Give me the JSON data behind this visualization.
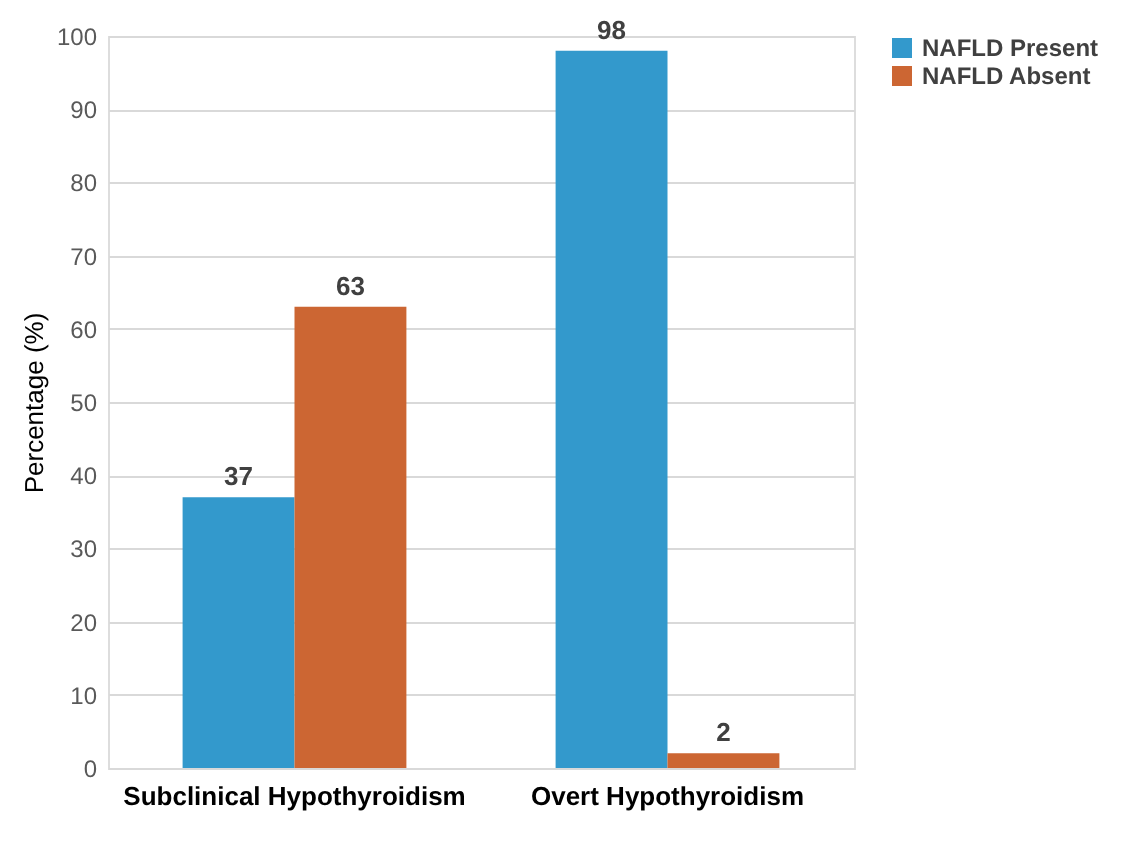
{
  "chart_data": {
    "type": "bar",
    "ylabel": "Percentage (%)",
    "categories": [
      "Subclinical Hypothyroidism",
      "Overt Hypothyroidism"
    ],
    "series": [
      {
        "name": "NAFLD Present",
        "color": "#3399cc",
        "values": [
          37,
          98
        ]
      },
      {
        "name": "NAFLD Absent",
        "color": "#cc6633",
        "values": [
          63,
          2
        ]
      }
    ],
    "ylim": [
      0,
      100
    ],
    "yticks": [
      0,
      10,
      20,
      30,
      40,
      50,
      60,
      70,
      80,
      90,
      100
    ],
    "grid": "y",
    "legend": "right",
    "data_labels": true
  }
}
